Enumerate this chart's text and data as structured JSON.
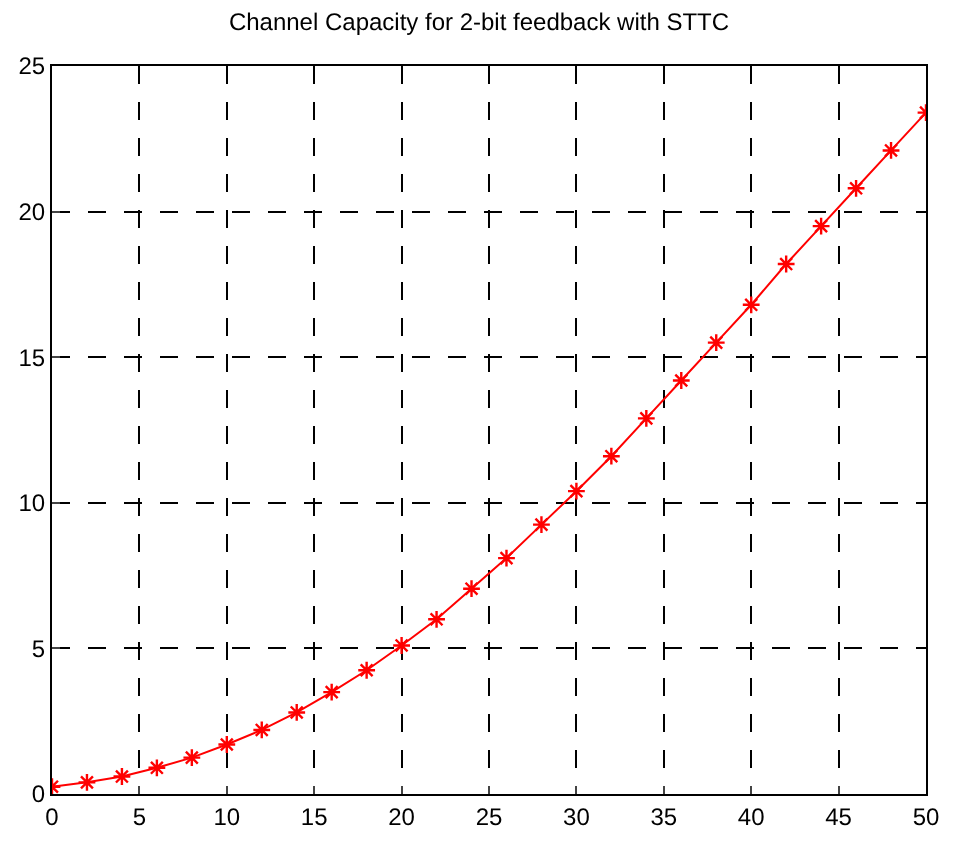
{
  "chart_data": {
    "type": "line",
    "title": "Channel Capacity for 2-bit feedback with STTC",
    "x": [
      0,
      2,
      4,
      6,
      8,
      10,
      12,
      14,
      16,
      18,
      20,
      22,
      24,
      26,
      28,
      30,
      32,
      34,
      36,
      38,
      40,
      42,
      44,
      46,
      48,
      50
    ],
    "series": [
      {
        "color": "#ff0000",
        "values": [
          0.25,
          0.4,
          0.6,
          0.9,
          1.25,
          1.7,
          2.2,
          2.8,
          3.5,
          4.25,
          5.1,
          6.0,
          7.05,
          8.1,
          9.25,
          10.4,
          11.6,
          12.9,
          14.2,
          15.5,
          16.8,
          18.2,
          19.5,
          20.8,
          22.1,
          23.4
        ]
      }
    ],
    "xlim": [
      0,
      50
    ],
    "xticks": [
      0,
      5,
      10,
      15,
      20,
      25,
      30,
      35,
      40,
      45,
      50
    ],
    "ylim": [
      0,
      25
    ],
    "yticks": [
      0,
      5,
      10,
      15,
      20,
      25
    ],
    "grid": true,
    "marker": "cross",
    "line_style": "solid",
    "legend": false
  }
}
